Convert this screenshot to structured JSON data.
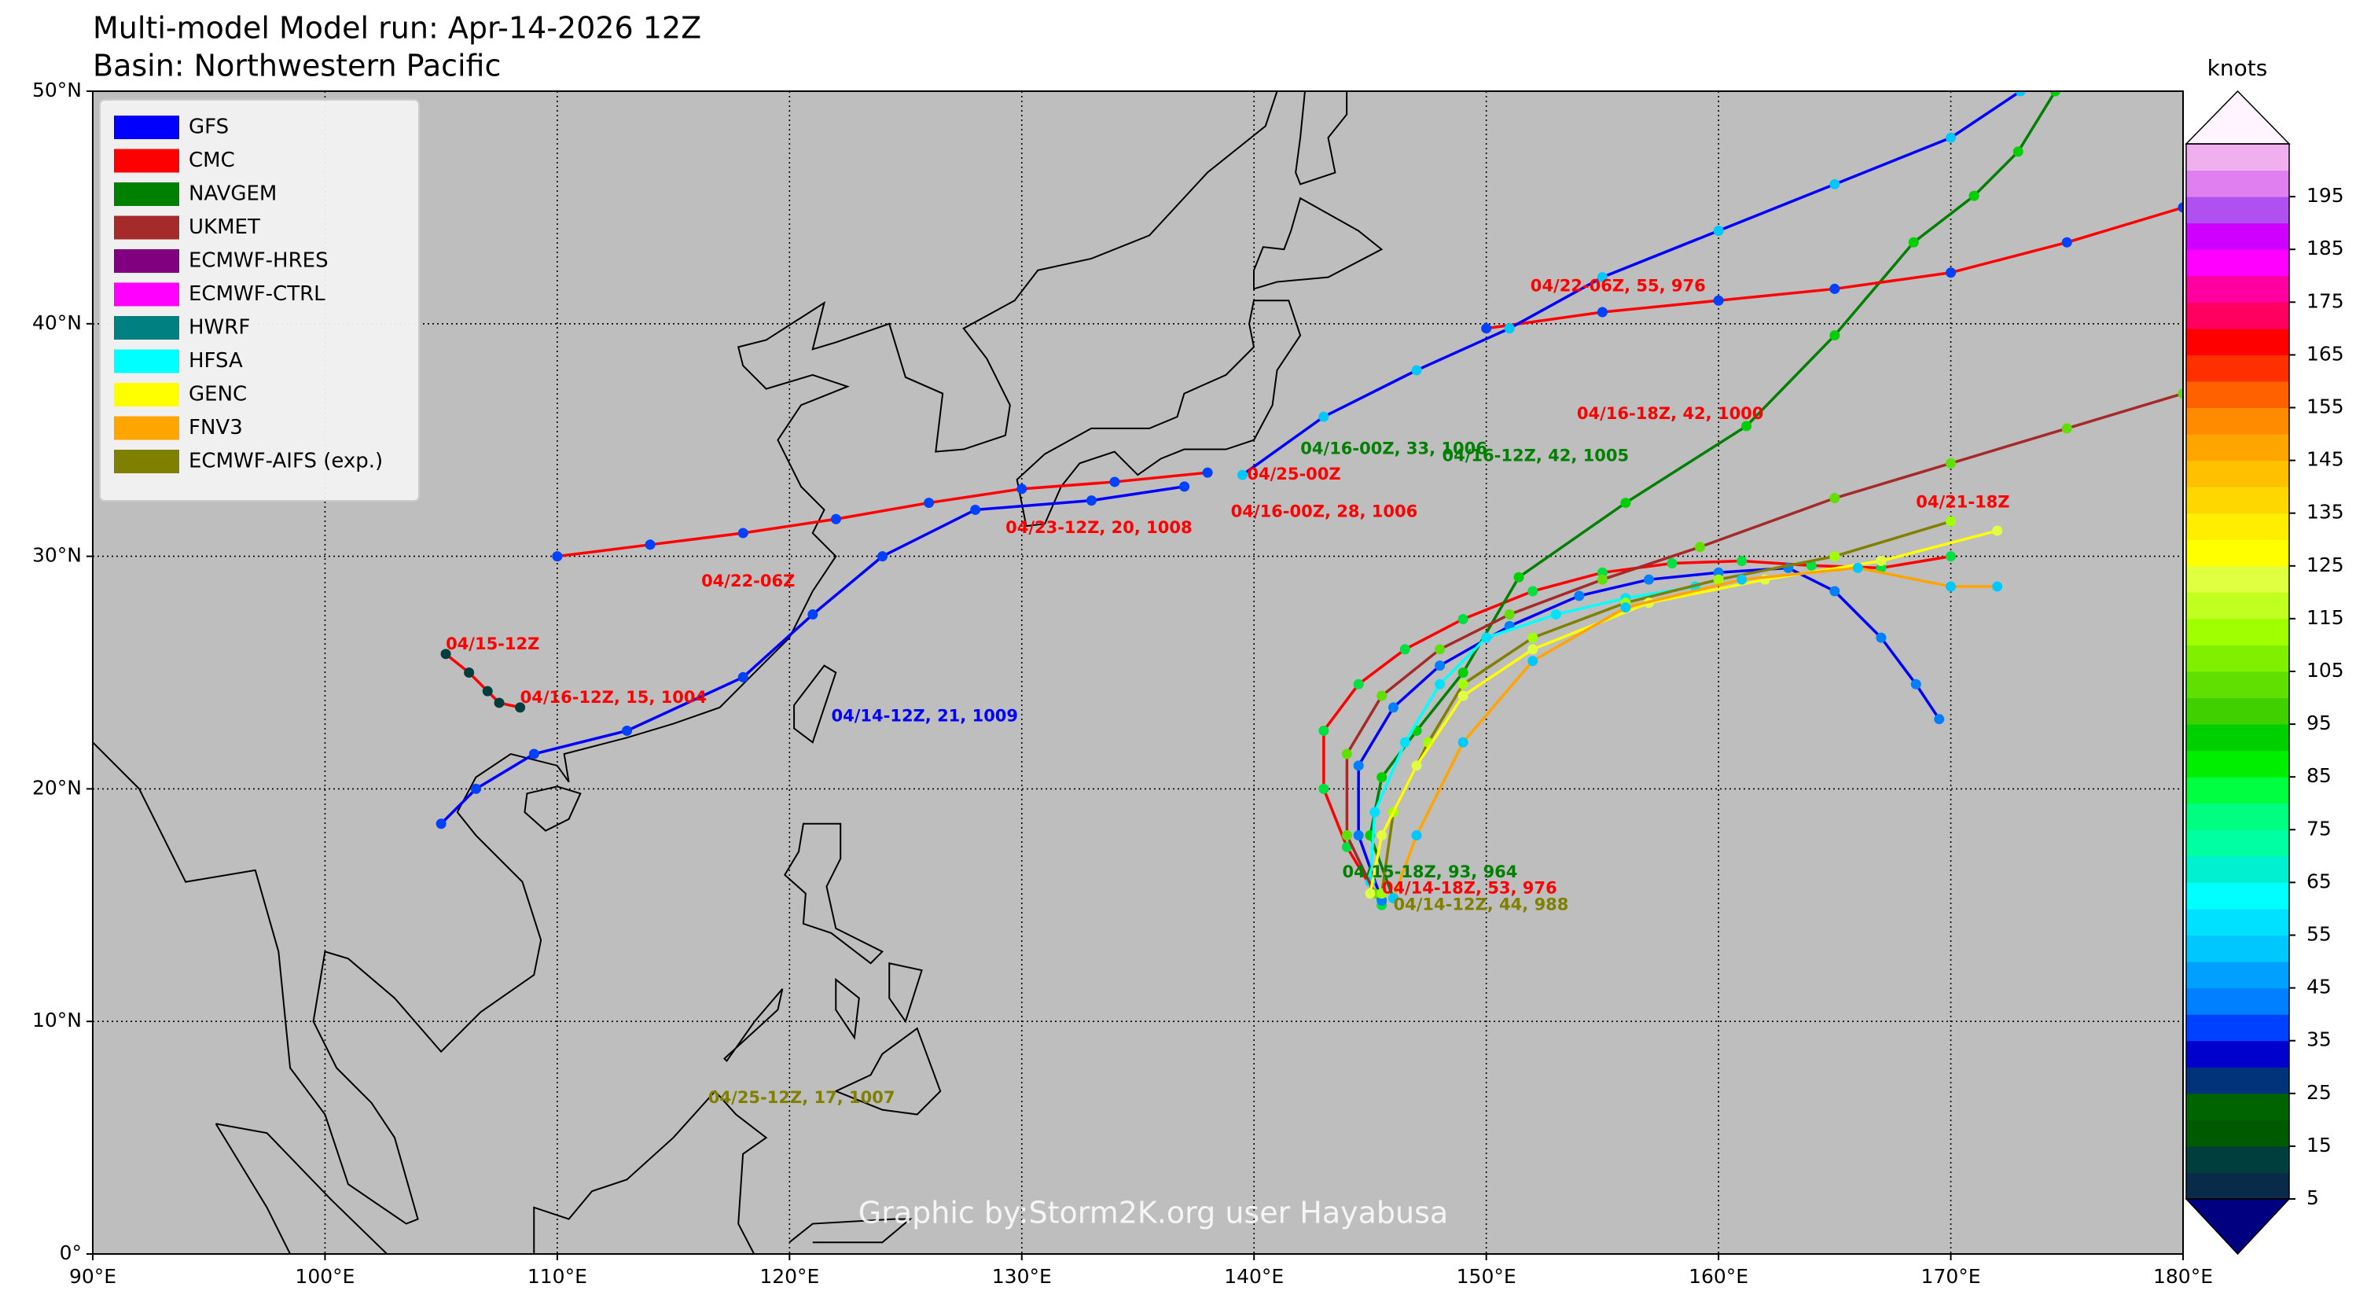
{
  "header": {
    "title_line1": "Multi-model Model run: Apr-14-2026 12Z",
    "title_line2": "Basin: Northwestern Pacific"
  },
  "map": {
    "lon_lim": [
      90,
      180
    ],
    "lat_lim": [
      0,
      50
    ],
    "lon_ticks": [
      {
        "value": 90,
        "label": "90°E"
      },
      {
        "value": 100,
        "label": "100°E"
      },
      {
        "value": 110,
        "label": "110°E"
      },
      {
        "value": 120,
        "label": "120°E"
      },
      {
        "value": 130,
        "label": "130°E"
      },
      {
        "value": 140,
        "label": "140°E"
      },
      {
        "value": 150,
        "label": "150°E"
      },
      {
        "value": 160,
        "label": "160°E"
      },
      {
        "value": 170,
        "label": "170°E"
      },
      {
        "value": 180,
        "label": "180°E"
      }
    ],
    "lat_ticks": [
      {
        "value": 0,
        "label": "0°"
      },
      {
        "value": 10,
        "label": "10°N"
      },
      {
        "value": 20,
        "label": "20°N"
      },
      {
        "value": 30,
        "label": "30°N"
      },
      {
        "value": 40,
        "label": "40°N"
      },
      {
        "value": 50,
        "label": "50°N"
      }
    ],
    "grid": true,
    "background": "#bebebe"
  },
  "legend": {
    "items": [
      {
        "label": "GFS",
        "color": "#0000ff"
      },
      {
        "label": "CMC",
        "color": "#ff0000"
      },
      {
        "label": "NAVGEM",
        "color": "#008000"
      },
      {
        "label": "UKMET",
        "color": "#a52a2a"
      },
      {
        "label": "ECMWF-HRES",
        "color": "#800080"
      },
      {
        "label": "ECMWF-CTRL",
        "color": "#ff00ff"
      },
      {
        "label": "HWRF",
        "color": "#008080"
      },
      {
        "label": "HFSA",
        "color": "#00ffff"
      },
      {
        "label": "GENC",
        "color": "#ffff00"
      },
      {
        "label": "FNV3",
        "color": "#ffa500"
      },
      {
        "label": "ECMWF-AIFS (exp.)",
        "color": "#808000"
      }
    ]
  },
  "colorbar": {
    "label": "knots",
    "lim": [
      5,
      205
    ],
    "ticks": [
      5,
      15,
      25,
      35,
      45,
      55,
      65,
      75,
      85,
      95,
      105,
      115,
      125,
      135,
      145,
      155,
      165,
      175,
      185,
      195
    ],
    "under": "#000080",
    "over": "#fff4ff",
    "colors": [
      "#0a2a4a",
      "#003d3d",
      "#005a00",
      "#006400",
      "#00337a",
      "#0000cd",
      "#0040ff",
      "#0080ff",
      "#00a0ff",
      "#00c8ff",
      "#00e0ff",
      "#00ffff",
      "#00f0d0",
      "#00ffa0",
      "#00ff80",
      "#00ff40",
      "#00ee00",
      "#00d000",
      "#40d000",
      "#60e000",
      "#80f000",
      "#a0ff00",
      "#c0ff20",
      "#e0ff40",
      "#ffff00",
      "#ffee00",
      "#ffd700",
      "#ffc000",
      "#ffa500",
      "#ff8c00",
      "#ff6000",
      "#ff3000",
      "#ff0000",
      "#ff0060",
      "#ff00a0",
      "#ff00ff",
      "#d000ff",
      "#b050f0",
      "#e080f0",
      "#f0b0f0"
    ]
  },
  "tracks": [
    {
      "color": "#ff0000",
      "point_color": "#00e040",
      "lon": [
        145.5,
        144,
        143,
        143,
        144.5,
        146.5,
        149,
        152,
        155,
        158,
        161,
        164,
        167,
        170
      ],
      "lat": [
        15,
        17.5,
        20,
        22.5,
        24.5,
        26,
        27.3,
        28.5,
        29.3,
        29.7,
        29.8,
        29.6,
        29.5,
        30
      ]
    },
    {
      "color": "#0000ff",
      "point_color": "#0080ff",
      "lon": [
        145.5,
        144.5,
        144.5,
        146,
        148,
        151,
        154,
        157,
        160,
        163,
        165,
        167,
        168.5,
        169.5
      ],
      "lat": [
        15.2,
        18,
        21,
        23.5,
        25.3,
        27,
        28.3,
        29,
        29.3,
        29.5,
        28.5,
        26.5,
        24.5,
        23
      ]
    },
    {
      "color": "#008000",
      "point_color": "#00d000",
      "lon": [
        146,
        145,
        145.5,
        147,
        149,
        151.4,
        156,
        161.2,
        165,
        168.4,
        171,
        172.9,
        174.5
      ],
      "lat": [
        15.3,
        18,
        20.5,
        22.5,
        25,
        29.1,
        32.3,
        35.6,
        39.5,
        43.5,
        45.5,
        47.4,
        50
      ]
    },
    {
      "color": "#00ffff",
      "point_color": "#00e0ff",
      "lon": [
        145,
        145.2,
        146.5,
        148,
        150,
        153,
        156,
        159
      ],
      "lat": [
        16,
        19,
        22,
        24.5,
        26.5,
        27.5,
        28.2,
        28.7
      ]
    },
    {
      "color": "#a52a2a",
      "point_color": "#60e000",
      "lon": [
        145.2,
        144,
        144,
        145.5,
        148,
        151,
        155,
        159.2,
        165,
        170,
        175,
        180
      ],
      "lat": [
        15.5,
        18,
        21.5,
        24,
        26,
        27.5,
        29,
        30.4,
        32.5,
        34,
        35.5,
        37
      ]
    },
    {
      "color": "#808000",
      "point_color": "#a0ff00",
      "lon": [
        145.5,
        146,
        147.5,
        149,
        152,
        156,
        160,
        165,
        170
      ],
      "lat": [
        15.5,
        19,
        22,
        24.5,
        26.5,
        28,
        29,
        30,
        31.5
      ]
    },
    {
      "color": "#ffff00",
      "point_color": "#e0ff40",
      "lon": [
        145,
        145.5,
        147,
        149,
        152,
        157,
        162,
        167,
        172
      ],
      "lat": [
        15.5,
        18,
        21,
        24,
        26,
        28,
        29,
        29.8,
        31.1
      ]
    },
    {
      "color": "#ffa500",
      "point_color": "#00c8ff",
      "lon": [
        146,
        147,
        149,
        152,
        156,
        161,
        166,
        170,
        172
      ],
      "lat": [
        15.3,
        18,
        22,
        25.5,
        27.8,
        29,
        29.5,
        28.7,
        28.7
      ]
    },
    {
      "color": "#0000ff",
      "point_color": "#0040ff",
      "lon": [
        105,
        106.5,
        109,
        113,
        118,
        121,
        124,
        128,
        133,
        137
      ],
      "lat": [
        18.5,
        20,
        21.5,
        22.5,
        24.8,
        27.5,
        30,
        32,
        32.4,
        33
      ]
    },
    {
      "color": "#ff0000",
      "point_color": "#0040ff",
      "lon": [
        150,
        155,
        160,
        165,
        170,
        175,
        180
      ],
      "lat": [
        39.8,
        40.5,
        41,
        41.5,
        42.2,
        43.5,
        45
      ]
    },
    {
      "color": "#0000ff",
      "point_color": "#00c8ff",
      "lon": [
        139.5,
        143,
        147,
        151,
        155,
        160,
        165,
        170,
        173
      ],
      "lat": [
        33.5,
        36,
        38,
        39.8,
        42,
        44,
        46,
        48,
        50
      ]
    },
    {
      "color": "#ff0000",
      "point_color": "#003d3d",
      "lon": [
        105.2,
        106.2,
        107,
        107.5,
        108.4
      ],
      "lat": [
        25.8,
        25,
        24.2,
        23.7,
        23.5
      ]
    },
    {
      "color": "#ff0000",
      "point_color": "#0040ff",
      "lon": [
        110,
        114,
        118,
        122,
        126,
        130,
        134,
        138
      ],
      "lat": [
        30,
        30.5,
        31,
        31.6,
        32.3,
        32.9,
        33.2,
        33.6
      ]
    }
  ],
  "annotations": [
    {
      "text": "04/15-12Z",
      "color": "#ff0000",
      "lon": 105.2,
      "lat": 26.2
    },
    {
      "text": "04/16-12Z, 15, 1004",
      "color": "#ff0000",
      "lon": 108.4,
      "lat": 23.9
    },
    {
      "text": "04/14-12Z, 21, 1009",
      "color": "#0000ff",
      "lon": 121.8,
      "lat": 23.1
    },
    {
      "text": "04/22-06Z",
      "color": "#ff0000",
      "lon": 116.2,
      "lat": 28.9
    },
    {
      "text": "04/16-00Z, 28, 1006",
      "color": "#ff0000",
      "lon": 139.0,
      "lat": 31.9
    },
    {
      "text": "04/16-18Z, 42, 1000",
      "color": "#ff0000",
      "lon": 153.9,
      "lat": 36.1
    },
    {
      "text": "04/22-06Z, 55, 976",
      "color": "#ff0000",
      "lon": 151.9,
      "lat": 41.6
    },
    {
      "text": "04/21-18Z",
      "color": "#ff0000",
      "lon": 168.5,
      "lat": 32.3
    },
    {
      "text": "04/15-18Z, 93, 964",
      "color": "#008000",
      "lon": 143.8,
      "lat": 16.4
    },
    {
      "text": "04/14-18Z, 53, 976",
      "color": "#ff0000",
      "lon": 145.5,
      "lat": 15.7
    },
    {
      "text": "04/14-12Z, 44, 988",
      "color": "#808000",
      "lon": 146.0,
      "lat": 15.0
    },
    {
      "text": "04/16-12Z, 42, 1005",
      "color": "#008000",
      "lon": 148.1,
      "lat": 34.3
    },
    {
      "text": "04/16-00Z, 33, 1006",
      "color": "#008000",
      "lon": 142.0,
      "lat": 34.6
    },
    {
      "text": "04/25-12Z, 17, 1007",
      "color": "#808000",
      "lon": 116.5,
      "lat": 6.7
    },
    {
      "text": "04/23-12Z, 20, 1008",
      "color": "#ff0000",
      "lon": 129.3,
      "lat": 31.2
    },
    {
      "text": "04/25-00Z",
      "color": "#ff0000",
      "lon": 139.7,
      "lat": 33.5
    }
  ],
  "watermark": "Graphic by:Storm2K.org user Hayabusa"
}
